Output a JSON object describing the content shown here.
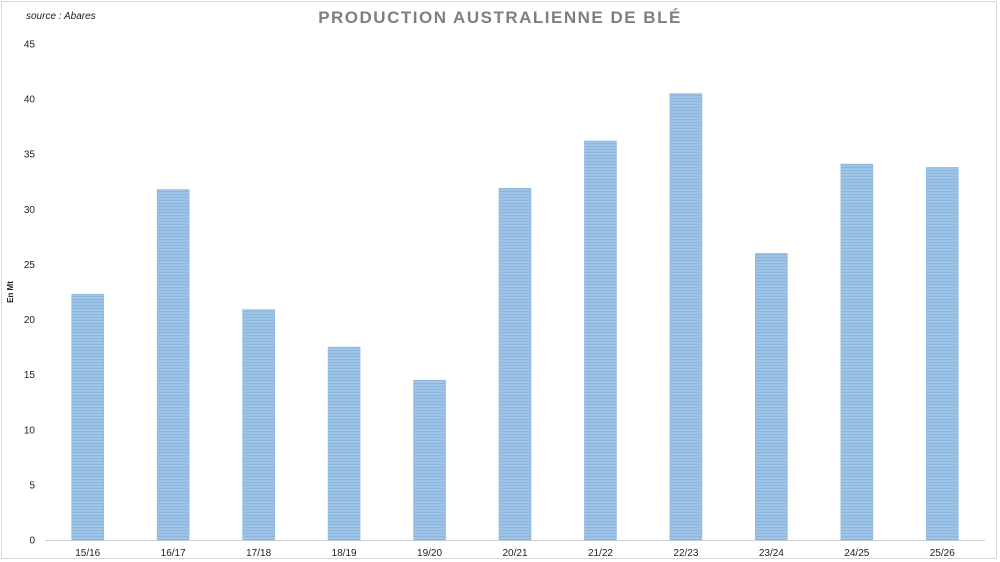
{
  "source": "source : Abares",
  "chart_data": {
    "type": "bar",
    "title": "PRODUCTION AUSTRALIENNE DE BLÉ",
    "ylabel": "En Mt",
    "xlabel": "",
    "categories": [
      "15/16",
      "16/17",
      "17/18",
      "18/19",
      "19/20",
      "20/21",
      "21/22",
      "22/23",
      "23/24",
      "24/25",
      "25/26"
    ],
    "values": [
      22.3,
      31.8,
      20.9,
      17.5,
      14.5,
      31.9,
      36.2,
      40.5,
      26.0,
      34.1,
      33.8
    ],
    "ylim": [
      0,
      45
    ],
    "yticks": [
      "0",
      "5",
      "10",
      "15",
      "20",
      "25",
      "30",
      "35",
      "40",
      "45"
    ],
    "grid": false,
    "legend": "none",
    "bar_color": "#9dc3e6",
    "bar_stripe_color": "#8cb6dd"
  }
}
